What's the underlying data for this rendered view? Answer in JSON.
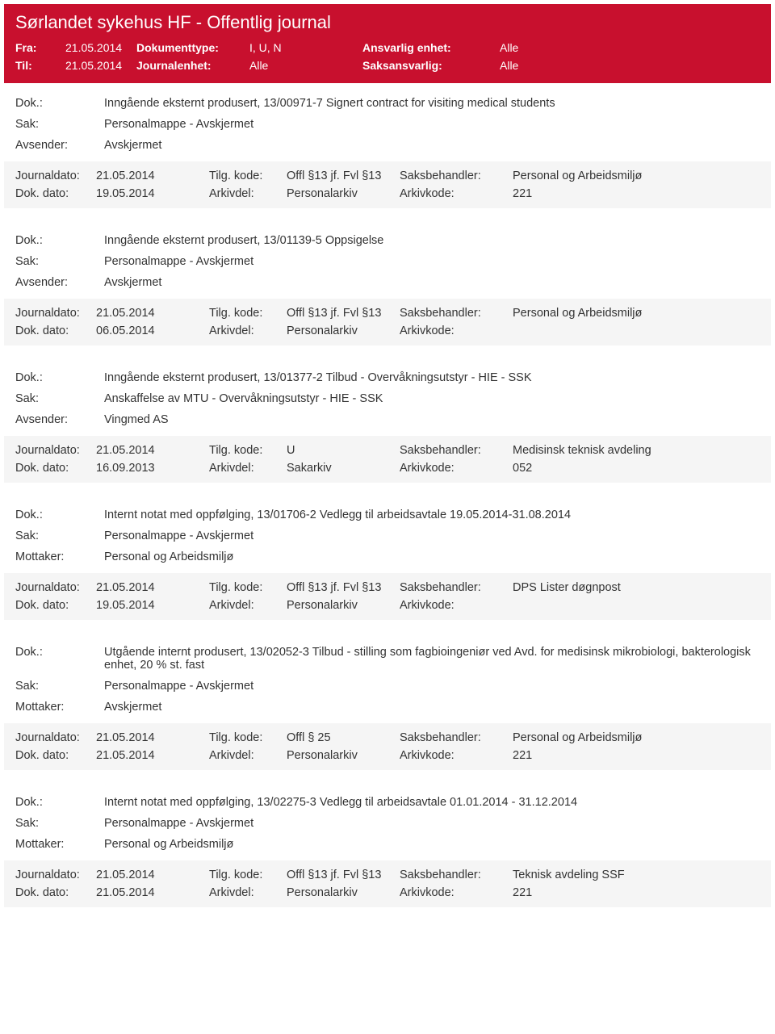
{
  "colors": {
    "header_bg": "#c8102e",
    "header_text": "#ffffff",
    "body_text": "#333333",
    "alt_bg": "#f5f5f5"
  },
  "header": {
    "title": "Sørlandet sykehus HF - Offentlig journal",
    "fra_label": "Fra:",
    "fra_value": "21.05.2014",
    "til_label": "Til:",
    "til_value": "21.05.2014",
    "dokumenttype_label": "Dokumenttype:",
    "dokumenttype_value": "I, U, N",
    "journalenhet_label": "Journalenhet:",
    "journalenhet_value": "Alle",
    "ansvarlig_label": "Ansvarlig enhet:",
    "ansvarlig_value": "Alle",
    "saksansvarlig_label": "Saksansvarlig:",
    "saksansvarlig_value": "Alle"
  },
  "labels": {
    "dok": "Dok.:",
    "sak": "Sak:",
    "avsender": "Avsender:",
    "mottaker": "Mottaker:",
    "journaldato": "Journaldato:",
    "dokdato": "Dok. dato:",
    "tilgkode": "Tilg. kode:",
    "arkivdel": "Arkivdel:",
    "saksbehandler": "Saksbehandler:",
    "arkivkode": "Arkivkode:"
  },
  "entries": [
    {
      "dok": "Inngående eksternt produsert, 13/00971-7 Signert contract for visiting medical students",
      "sak": "Personalmappe - Avskjermet",
      "party_label": "Avsender:",
      "party_value": "Avskjermet",
      "journaldato": "21.05.2014",
      "tilgkode": "Offl §13 jf. Fvl §13",
      "saksbehandler": "Personal og Arbeidsmiljø",
      "dokdato": "19.05.2014",
      "arkivdel": "Personalarkiv",
      "arkivkode": "221"
    },
    {
      "dok": "Inngående eksternt produsert, 13/01139-5 Oppsigelse",
      "sak": "Personalmappe - Avskjermet",
      "party_label": "Avsender:",
      "party_value": "Avskjermet",
      "journaldato": "21.05.2014",
      "tilgkode": "Offl §13 jf. Fvl §13",
      "saksbehandler": "Personal og Arbeidsmiljø",
      "dokdato": "06.05.2014",
      "arkivdel": "Personalarkiv",
      "arkivkode": ""
    },
    {
      "dok": "Inngående eksternt produsert, 13/01377-2 Tilbud - Overvåkningsutstyr - HIE - SSK",
      "sak": "Anskaffelse av MTU - Overvåkningsutstyr - HIE - SSK",
      "party_label": "Avsender:",
      "party_value": "Vingmed AS",
      "journaldato": "21.05.2014",
      "tilgkode": "U",
      "saksbehandler": "Medisinsk teknisk avdeling",
      "dokdato": "16.09.2013",
      "arkivdel": "Sakarkiv",
      "arkivkode": "052"
    },
    {
      "dok": "Internt notat med oppfølging, 13/01706-2 Vedlegg til arbeidsavtale 19.05.2014-31.08.2014",
      "sak": "Personalmappe - Avskjermet",
      "party_label": "Mottaker:",
      "party_value": "Personal og Arbeidsmiljø",
      "journaldato": "21.05.2014",
      "tilgkode": "Offl §13 jf. Fvl §13",
      "saksbehandler": "DPS Lister døgnpost",
      "dokdato": "19.05.2014",
      "arkivdel": "Personalarkiv",
      "arkivkode": ""
    },
    {
      "dok": "Utgående internt produsert, 13/02052-3 Tilbud - stilling som fagbioingeniør ved Avd. for medisinsk mikrobiologi, bakterologisk enhet, 20 % st. fast",
      "sak": "Personalmappe - Avskjermet",
      "party_label": "Mottaker:",
      "party_value": "Avskjermet",
      "journaldato": "21.05.2014",
      "tilgkode": "Offl § 25",
      "saksbehandler": "Personal og Arbeidsmiljø",
      "dokdato": "21.05.2014",
      "arkivdel": "Personalarkiv",
      "arkivkode": "221"
    },
    {
      "dok": "Internt notat med oppfølging, 13/02275-3 Vedlegg til arbeidsavtale 01.01.2014 - 31.12.2014",
      "sak": "Personalmappe - Avskjermet",
      "party_label": "Mottaker:",
      "party_value": "Personal og Arbeidsmiljø",
      "journaldato": "21.05.2014",
      "tilgkode": "Offl §13 jf. Fvl §13",
      "saksbehandler": "Teknisk avdeling SSF",
      "dokdato": "21.05.2014",
      "arkivdel": "Personalarkiv",
      "arkivkode": "221"
    }
  ]
}
